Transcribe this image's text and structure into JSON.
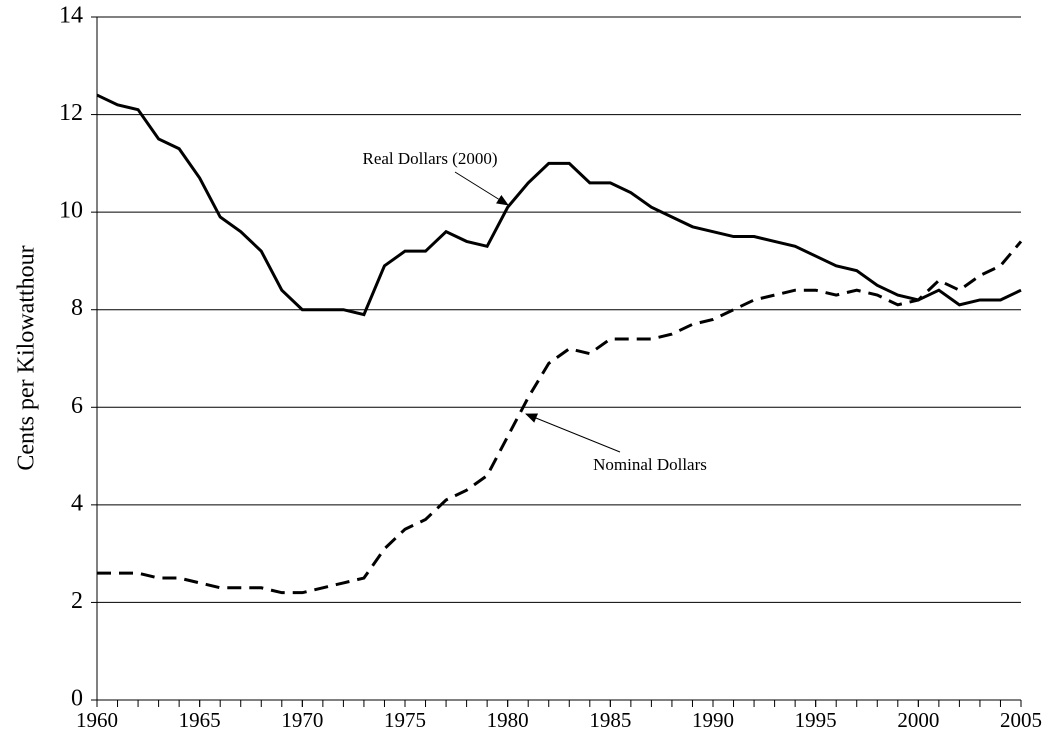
{
  "chart_data": {
    "type": "line",
    "y_label": "Cents per Kilowatthour",
    "x": [
      1960,
      1961,
      1962,
      1963,
      1964,
      1965,
      1966,
      1967,
      1968,
      1969,
      1970,
      1971,
      1972,
      1973,
      1974,
      1975,
      1976,
      1977,
      1978,
      1979,
      1980,
      1981,
      1982,
      1983,
      1984,
      1985,
      1986,
      1987,
      1988,
      1989,
      1990,
      1991,
      1992,
      1993,
      1994,
      1995,
      1996,
      1997,
      1998,
      1999,
      2000,
      2001,
      2002,
      2003,
      2004,
      2005
    ],
    "series": [
      {
        "name": "Real Dollars (2000)",
        "color": "#000000",
        "dash": "solid",
        "values": [
          12.4,
          12.2,
          12.1,
          11.5,
          11.3,
          10.7,
          9.9,
          9.6,
          9.2,
          8.4,
          8.0,
          8.0,
          8.0,
          7.9,
          8.9,
          9.2,
          9.2,
          9.6,
          9.4,
          9.3,
          10.1,
          10.6,
          11.0,
          11.0,
          10.6,
          10.6,
          10.4,
          10.1,
          9.9,
          9.7,
          9.6,
          9.5,
          9.5,
          9.4,
          9.3,
          9.1,
          8.9,
          8.8,
          8.5,
          8.3,
          8.2,
          8.4,
          8.1,
          8.2,
          8.2,
          8.4
        ]
      },
      {
        "name": "Nominal Dollars",
        "color": "#000000",
        "dash": "dashed",
        "values": [
          2.6,
          2.6,
          2.6,
          2.5,
          2.5,
          2.4,
          2.3,
          2.3,
          2.3,
          2.2,
          2.2,
          2.3,
          2.4,
          2.5,
          3.1,
          3.5,
          3.7,
          4.1,
          4.3,
          4.6,
          5.4,
          6.2,
          6.9,
          7.2,
          7.1,
          7.4,
          7.4,
          7.4,
          7.5,
          7.7,
          7.8,
          8.0,
          8.2,
          8.3,
          8.4,
          8.4,
          8.3,
          8.4,
          8.3,
          8.1,
          8.2,
          8.6,
          8.4,
          8.7,
          8.9,
          9.4
        ]
      }
    ],
    "xlim": [
      1960,
      2005
    ],
    "xticks": [
      1960,
      1965,
      1970,
      1975,
      1980,
      1985,
      1990,
      1995,
      2000,
      2005
    ],
    "ylim": [
      0,
      14
    ],
    "yticks": [
      0,
      2,
      4,
      6,
      8,
      10,
      12,
      14
    ],
    "grid": true
  }
}
